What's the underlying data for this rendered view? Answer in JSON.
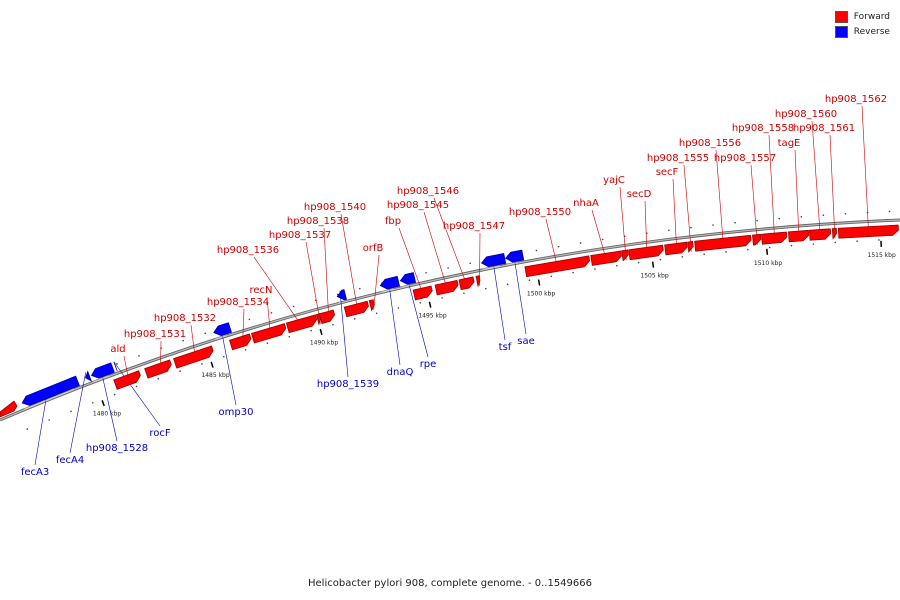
{
  "legend": {
    "forward_label": "Forward",
    "reverse_label": "Reverse",
    "forward_color": "#ff0000",
    "reverse_color": "#0000ff"
  },
  "caption": "Helicobacter pylori 908, complete genome. - 0..1549666",
  "colors": {
    "label_forward": "#cc0000",
    "label_reverse": "#0000cc",
    "backbone": "#888888"
  },
  "scale_ticks": [
    {
      "label": "1480 kbp",
      "kbp": 1480
    },
    {
      "label": "1485 kbp",
      "kbp": 1485
    },
    {
      "label": "1490 kbp",
      "kbp": 1490
    },
    {
      "label": "1495 kbp",
      "kbp": 1495
    },
    {
      "label": "1500 kbp",
      "kbp": 1500
    },
    {
      "label": "1505 kbp",
      "kbp": 1505
    },
    {
      "label": "1510 kbp",
      "kbp": 1510
    },
    {
      "label": "1515 kbp",
      "kbp": 1515
    }
  ],
  "forward_genes": [
    {
      "name": "ald"
    },
    {
      "name": "hp908_1531"
    },
    {
      "name": "hp908_1532"
    },
    {
      "name": "hp908_1534"
    },
    {
      "name": "recN"
    },
    {
      "name": "hp908_1536"
    },
    {
      "name": "hp908_1537"
    },
    {
      "name": "hp908_1538"
    },
    {
      "name": "hp908_1540"
    },
    {
      "name": "orfB"
    },
    {
      "name": "fbp"
    },
    {
      "name": "hp908_1545"
    },
    {
      "name": "hp908_1546"
    },
    {
      "name": "hp908_1547"
    },
    {
      "name": "hp908_1550"
    },
    {
      "name": "nhaA"
    },
    {
      "name": "yajC"
    },
    {
      "name": "secD"
    },
    {
      "name": "secF"
    },
    {
      "name": "hp908_1555"
    },
    {
      "name": "hp908_1556"
    },
    {
      "name": "hp908_1557"
    },
    {
      "name": "hp908_1558"
    },
    {
      "name": "tagE"
    },
    {
      "name": "hp908_1560"
    },
    {
      "name": "hp908_1561"
    },
    {
      "name": "hp908_1562"
    }
  ],
  "reverse_genes": [
    {
      "name": "fecA3"
    },
    {
      "name": "fecA4"
    },
    {
      "name": "hp908_1528"
    },
    {
      "name": "rocF"
    },
    {
      "name": "omp30"
    },
    {
      "name": "hp908_1539"
    },
    {
      "name": "dnaQ"
    },
    {
      "name": "rpe"
    },
    {
      "name": "tsf"
    },
    {
      "name": "sae"
    }
  ]
}
